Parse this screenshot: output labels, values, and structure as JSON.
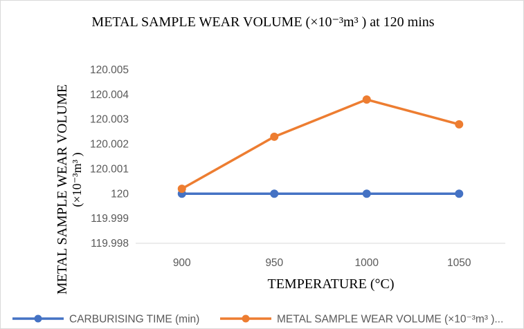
{
  "chart_data": {
    "type": "line",
    "title": "METAL SAMPLE WEAR VOLUME (×10⁻³m³ ) at 120 mins",
    "xlabel": "TEMPERATURE (°C)",
    "ylabel_line1": "METAL SAMPLE WEAR VOLUME",
    "ylabel_line2": "(×10⁻³m³ )",
    "categories": [
      "900",
      "950",
      "1000",
      "1050"
    ],
    "ylim": [
      119.998,
      120.005
    ],
    "yticks": [
      "119.998",
      "119.999",
      "120",
      "120.001",
      "120.002",
      "120.003",
      "120.004",
      "120.005"
    ],
    "grid": false,
    "legend_position": "bottom",
    "series": [
      {
        "name": "CARBURISING TIME (min)",
        "color": "#4472c4",
        "values": [
          120.0,
          120.0,
          120.0,
          120.0
        ]
      },
      {
        "name": "METAL SAMPLE WEAR VOLUME (×10⁻³m³ )...",
        "color": "#ed7d31",
        "values": [
          120.0002,
          120.0023,
          120.0038,
          120.0028
        ]
      }
    ]
  }
}
